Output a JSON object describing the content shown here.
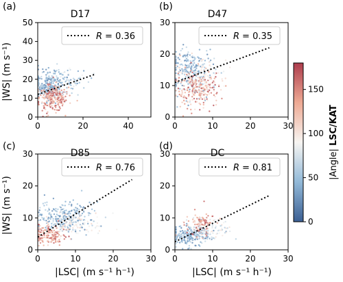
{
  "chart_data": [
    {
      "type": "scatter",
      "panel_letter": "(a)",
      "title": "D17",
      "xlabel": "",
      "ylabel": "|WS| (m s⁻¹)",
      "xlim": [
        0,
        50
      ],
      "ylim": [
        0,
        50
      ],
      "xticks": [
        "0",
        "20",
        "40"
      ],
      "yticks": [
        "0",
        "10",
        "20",
        "30",
        "40",
        "50"
      ],
      "legend": {
        "position": "top-right",
        "style": "dotted",
        "label_var": "R",
        "label_value": "= 0.36"
      },
      "fit_line": {
        "x": [
          0,
          25
        ],
        "y": [
          12.0,
          22.5
        ]
      },
      "clusters": [
        {
          "cx": 5,
          "cy": 17,
          "sx": 3.5,
          "sy": 4,
          "angle": [
            20,
            70
          ],
          "n": 220
        },
        {
          "cx": 6,
          "cy": 10,
          "sx": 3.5,
          "sy": 3.5,
          "angle": [
            110,
            175
          ],
          "n": 220
        },
        {
          "cx": 12,
          "cy": 19,
          "sx": 5,
          "sy": 3.5,
          "angle": [
            20,
            90
          ],
          "n": 70
        }
      ]
    },
    {
      "type": "scatter",
      "panel_letter": "(b)",
      "title": "D47",
      "xlabel": "",
      "ylabel": "",
      "xlim": [
        0,
        30
      ],
      "ylim": [
        0,
        30
      ],
      "xticks": [
        "0",
        "10",
        "20",
        "30"
      ],
      "yticks": [
        "0",
        "10",
        "20",
        "30"
      ],
      "legend": {
        "position": "top-right",
        "style": "dotted",
        "label_var": "R",
        "label_value": "= 0.35"
      },
      "fit_line": {
        "x": [
          0,
          25
        ],
        "y": [
          11.0,
          22.0
        ]
      },
      "clusters": [
        {
          "cx": 4,
          "cy": 15,
          "sx": 3,
          "sy": 3.5,
          "angle": [
            20,
            70
          ],
          "n": 230
        },
        {
          "cx": 6,
          "cy": 9,
          "sx": 3,
          "sy": 3,
          "angle": [
            100,
            175
          ],
          "n": 230
        },
        {
          "cx": 8,
          "cy": 13,
          "sx": 3,
          "sy": 3,
          "angle": [
            80,
            110
          ],
          "n": 80
        }
      ]
    },
    {
      "type": "scatter",
      "panel_letter": "(c)",
      "title": "D85",
      "xlabel": "|LSC| (m s⁻¹ h⁻¹)",
      "ylabel": "|WS| (m s⁻¹)",
      "xlim": [
        0,
        30
      ],
      "ylim": [
        0,
        30
      ],
      "xticks": [
        "0",
        "10",
        "20",
        "30"
      ],
      "yticks": [
        "0",
        "10",
        "20",
        "30"
      ],
      "legend": {
        "position": "top-right",
        "style": "dotted",
        "label_var": "R",
        "label_value": "= 0.76"
      },
      "fit_line": {
        "x": [
          0,
          25
        ],
        "y": [
          4.0,
          22.0
        ]
      },
      "clusters": [
        {
          "cx": 7,
          "cy": 10,
          "sx": 3.5,
          "sy": 2.5,
          "angle": [
            20,
            65
          ],
          "n": 260
        },
        {
          "cx": 3.5,
          "cy": 4.5,
          "sx": 2,
          "sy": 1.6,
          "angle": [
            110,
            175
          ],
          "n": 140
        },
        {
          "cx": 10,
          "cy": 8,
          "sx": 4,
          "sy": 2,
          "angle": [
            80,
            110
          ],
          "n": 90
        }
      ]
    },
    {
      "type": "scatter",
      "panel_letter": "(d)",
      "title": "DC",
      "xlabel": "|LSC| (m s⁻¹ h⁻¹)",
      "ylabel": "",
      "xlim": [
        0,
        30
      ],
      "ylim": [
        0,
        30
      ],
      "xticks": [
        "0",
        "10",
        "20",
        "30"
      ],
      "yticks": [
        "0",
        "10",
        "20",
        "30"
      ],
      "legend": {
        "position": "top-right",
        "style": "dotted",
        "label_var": "R",
        "label_value": "= 0.81"
      },
      "fit_line": {
        "x": [
          0,
          25
        ],
        "y": [
          2.5,
          17.0
        ]
      },
      "clusters": [
        {
          "cx": 4,
          "cy": 4.5,
          "sx": 2.5,
          "sy": 1.5,
          "angle": [
            20,
            70
          ],
          "n": 220
        },
        {
          "cx": 7,
          "cy": 8,
          "sx": 2,
          "sy": 2,
          "angle": [
            120,
            175
          ],
          "n": 90
        },
        {
          "cx": 9,
          "cy": 6.5,
          "sx": 3,
          "sy": 1.5,
          "angle": [
            60,
            110
          ],
          "n": 90
        }
      ]
    }
  ],
  "colorbar": {
    "label": "|Angle| LSC/KAT",
    "label_plain": "|Angle| ",
    "label_bold": "LSC/KAT",
    "range": [
      0,
      180
    ],
    "ticks": [
      "0",
      "50",
      "100",
      "150"
    ],
    "tick_values": [
      0,
      50,
      100,
      150
    ],
    "colormap": "RdBu_r",
    "colors": [
      "#3b5f93",
      "#92b9d8",
      "#f7f5f2",
      "#eeaa94",
      "#ad3d4d"
    ]
  }
}
